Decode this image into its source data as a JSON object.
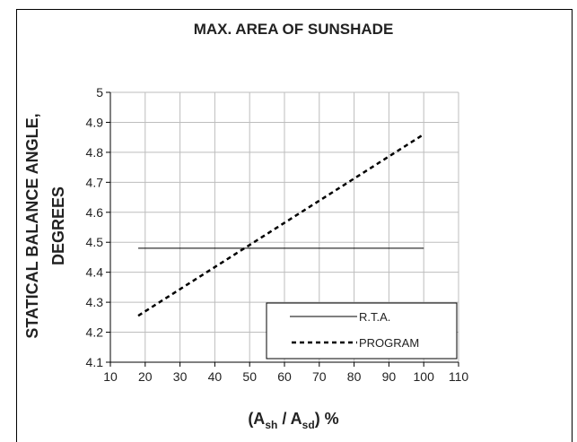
{
  "chart_data": {
    "type": "line",
    "title": "MAX. AREA OF SUNSHADE",
    "ylabel_lines": [
      "STATICAL BALANCE ANGLE,",
      "DEGREES"
    ],
    "xlabel": {
      "open": "(A",
      "sub1": "sh",
      "mid": " / A",
      "sub2": "sd",
      "close": ") %"
    },
    "xlim": [
      10,
      110
    ],
    "ylim": [
      4.1,
      5
    ],
    "xticks": [
      "10",
      "20",
      "30",
      "40",
      "50",
      "60",
      "70",
      "80",
      "90",
      "100",
      "110"
    ],
    "yticks": [
      "4.1",
      "4.2",
      "4.3",
      "4.4",
      "4.5",
      "4.6",
      "4.7",
      "4.8",
      "4.9",
      "5"
    ],
    "grid": true,
    "legend_position": "bottom-right",
    "series": [
      {
        "name": "R.T.A.",
        "style": "solid",
        "color": "#000000",
        "x": [
          18,
          100
        ],
        "y": [
          4.48,
          4.48
        ]
      },
      {
        "name": "PROGRAM",
        "style": "dashed",
        "color": "#000000",
        "x": [
          18,
          100
        ],
        "y": [
          4.255,
          4.86
        ]
      }
    ]
  }
}
